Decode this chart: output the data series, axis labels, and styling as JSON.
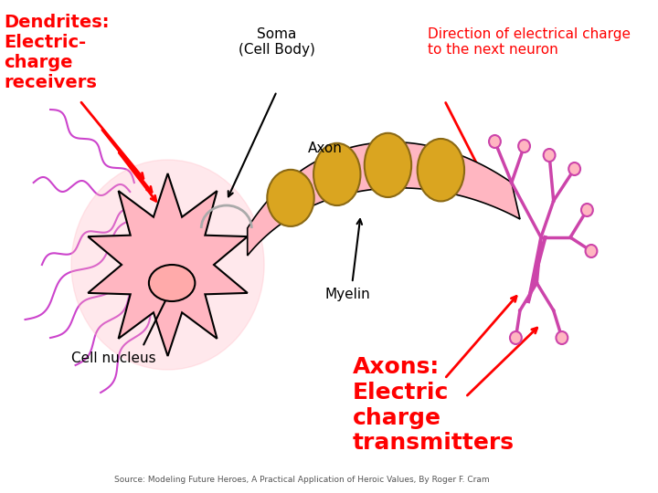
{
  "bg_color": "#ffffff",
  "soma_color": "#FFB6C1",
  "soma_edge_color": "#000000",
  "dendrite_color": "#FFB6C1",
  "dendrite_edge_color": "#cc44cc",
  "axon_color": "#FFB6C1",
  "myelin_color": "#DAA520",
  "nucleus_color": "#FFB6C1",
  "nucleus_edge_color": "#000000",
  "arrow_color_red": "#FF0000",
  "arrow_color_black": "#000000",
  "label_dendrites": "Dendrites:\nElectric-\ncharge\nreceivers",
  "label_soma": "Soma\n(Cell Body)",
  "label_axon": "Axon",
  "label_myelin": "Myelin",
  "label_cell_nucleus": "Cell nucleus",
  "label_direction": "Direction of electrical charge\nto the next neuron",
  "label_axons": "Axons:\nElectric\ncharge\ntransmitters",
  "source_text": "Source: Modeling Future Heroes, A Practical Application of Heroic Values, By Roger F. Cram",
  "fig_width": 7.2,
  "fig_height": 5.4,
  "dpi": 100
}
